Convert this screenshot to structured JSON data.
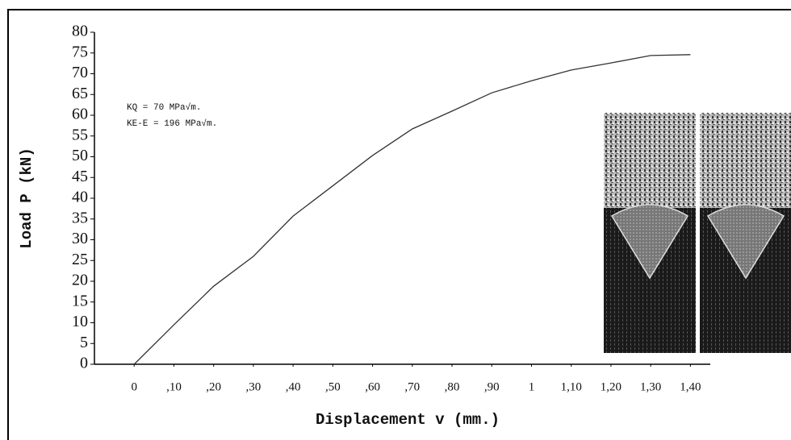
{
  "chart_data": {
    "type": "line",
    "y_label": "Load P (kN)",
    "x_label": "Displacement v (mm.)",
    "annotations": [
      "KQ   =  70  MPa√m.",
      "KE-E = 196  MPa√m."
    ],
    "x": [
      0,
      0.1,
      0.2,
      0.3,
      0.4,
      0.5,
      0.6,
      0.7,
      0.8,
      0.9,
      1.0,
      1.1,
      1.2,
      1.3,
      1.4
    ],
    "values": [
      0,
      9.5,
      18.8,
      26,
      35.7,
      43,
      50.3,
      56.7,
      61,
      65.4,
      68.3,
      70.9,
      72.6,
      74.4,
      74.6
    ],
    "color": "#333333",
    "xlim": [
      -0.1,
      1.45
    ],
    "ylim": [
      0,
      80
    ],
    "xticks": [
      0,
      {
        "value": 0.1,
        "label": ",10"
      },
      {
        "value": 0.2,
        "label": ",20"
      },
      {
        "value": 0.3,
        "label": ",30"
      },
      {
        "value": 0.4,
        "label": ",40"
      },
      {
        "value": 0.5,
        "label": ",50"
      },
      {
        "value": 0.6,
        "label": ",60"
      },
      {
        "value": 0.7,
        "label": ",70"
      },
      {
        "value": 0.8,
        "label": ",80"
      },
      {
        "value": 0.9,
        "label": ",90"
      },
      1,
      {
        "value": 1.1,
        "label": "1,10"
      },
      {
        "value": 1.2,
        "label": "1,20"
      },
      {
        "value": 1.3,
        "label": "1,30"
      },
      {
        "value": 1.4,
        "label": "1,40"
      }
    ],
    "yticks": [
      0,
      5,
      10,
      15,
      20,
      25,
      30,
      35,
      40,
      45,
      50,
      55,
      60,
      65,
      70,
      75,
      80
    ]
  }
}
